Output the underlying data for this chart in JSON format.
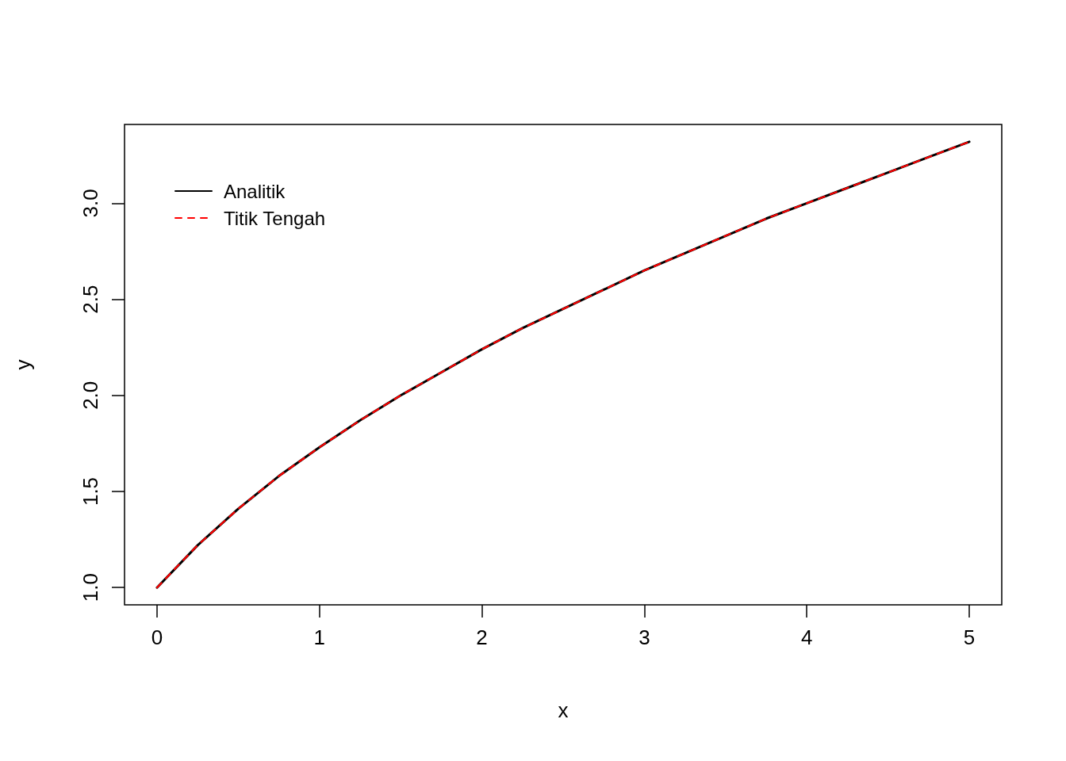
{
  "chart_data": {
    "type": "line",
    "xlabel": "x",
    "ylabel": "y",
    "x": [
      0,
      0.25,
      0.5,
      0.75,
      1,
      1.25,
      1.5,
      1.75,
      2,
      2.25,
      2.5,
      2.75,
      3,
      3.25,
      3.5,
      3.75,
      4,
      4.25,
      4.5,
      4.75,
      5
    ],
    "series": [
      {
        "name": "Analitik",
        "color": "#000000",
        "line_style": "solid",
        "values": [
          1.0,
          1.22,
          1.41,
          1.58,
          1.73,
          1.87,
          2.0,
          2.12,
          2.24,
          2.35,
          2.45,
          2.55,
          2.65,
          2.74,
          2.83,
          2.92,
          3.0,
          3.08,
          3.16,
          3.24,
          3.32
        ]
      },
      {
        "name": "Titik Tengah",
        "color": "#ff0000",
        "line_style": "dashed",
        "values": [
          1.0,
          1.22,
          1.41,
          1.58,
          1.73,
          1.87,
          2.0,
          2.12,
          2.24,
          2.35,
          2.45,
          2.55,
          2.65,
          2.74,
          2.83,
          2.92,
          3.0,
          3.08,
          3.16,
          3.24,
          3.32
        ]
      }
    ],
    "xlim": [
      -0.2,
      5.2
    ],
    "xticks": [
      0,
      1,
      2,
      3,
      4,
      5
    ],
    "ylim": [
      0.91,
      3.41
    ],
    "yticks": [
      {
        "value": 1,
        "label": "1.0"
      },
      {
        "value": 1.5,
        "label": "1.5"
      },
      {
        "value": 2,
        "label": "2.0"
      },
      {
        "value": 2.5,
        "label": "2.5"
      },
      {
        "value": 3,
        "label": "3.0"
      }
    ],
    "legend": "top left",
    "grid": false,
    "marker": "none"
  }
}
